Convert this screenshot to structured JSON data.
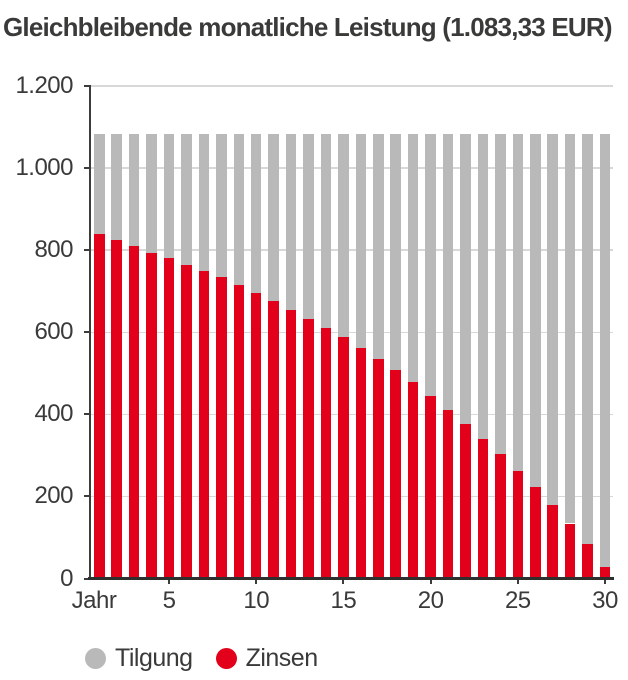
{
  "title": "Gleichbleibende monatliche Leistung (1.083,33 EUR)",
  "colors": {
    "tilgung": "#b9b9ba",
    "zinsen": "#e3001b",
    "axis": "#3c3c3b",
    "grid": "#d8d8d8",
    "text": "#3a3a39"
  },
  "chart_data": {
    "type": "bar",
    "stacked": true,
    "title": "Gleichbleibende monatliche Leistung (1.083,33 EUR)",
    "x_axis_unit": "Jahr",
    "categories": [
      1,
      2,
      3,
      4,
      5,
      6,
      7,
      8,
      9,
      10,
      11,
      12,
      13,
      14,
      15,
      16,
      17,
      18,
      19,
      20,
      21,
      22,
      23,
      24,
      25,
      26,
      27,
      28,
      29,
      30
    ],
    "series": [
      {
        "name": "Tilgung",
        "color": "#b9b9ba",
        "values": [
          243,
          259,
          273,
          290,
          303,
          318,
          333,
          349,
          367,
          387,
          407,
          428,
          450,
          472,
          495,
          521,
          547,
          574,
          604,
          639,
          673,
          707,
          743,
          779,
          820,
          861,
          904,
          949,
          1000,
          1055
        ]
      },
      {
        "name": "Zinsen",
        "color": "#e3001b",
        "values": [
          840,
          824,
          810,
          793,
          780,
          765,
          750,
          734,
          716,
          696,
          676,
          655,
          633,
          611,
          588,
          562,
          536,
          509,
          479,
          444,
          410,
          376,
          340,
          304,
          263,
          222,
          179,
          134,
          83,
          28
        ]
      }
    ],
    "bar_total": 1083.33,
    "ylim": [
      0,
      1200
    ],
    "y_ticks": [
      {
        "label": "1.200",
        "value": 1200
      },
      {
        "label": "1.000",
        "value": 1000
      },
      {
        "label": "800",
        "value": 800
      },
      {
        "label": "600",
        "value": 600
      },
      {
        "label": "400",
        "value": 400
      },
      {
        "label": "200",
        "value": 200
      },
      {
        "label": "0",
        "value": 0
      }
    ],
    "x_ticks": [
      {
        "label": "5",
        "year": 5
      },
      {
        "label": "10",
        "year": 10
      },
      {
        "label": "15",
        "year": 15
      },
      {
        "label": "20",
        "year": 20
      },
      {
        "label": "25",
        "year": 25
      },
      {
        "label": "30",
        "year": 30
      }
    ],
    "legend_position": "bottom-left",
    "grid": true
  },
  "legend": {
    "tilgung_label": "Tilgung",
    "zinsen_label": "Zinsen"
  }
}
